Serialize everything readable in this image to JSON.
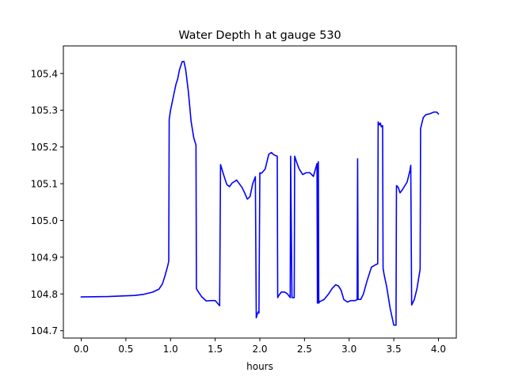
{
  "chart_data": {
    "type": "line",
    "title": "Water Depth h at gauge 530",
    "xlabel": "hours",
    "ylabel": "",
    "xlim": [
      -0.2,
      4.2
    ],
    "ylim": [
      104.68,
      105.475
    ],
    "grid": false,
    "x_ticks": [
      0.0,
      0.5,
      1.0,
      1.5,
      2.0,
      2.5,
      3.0,
      3.5,
      4.0
    ],
    "x_tick_labels": [
      "0.0",
      "0.5",
      "1.0",
      "1.5",
      "2.0",
      "2.5",
      "3.0",
      "3.5",
      "4.0"
    ],
    "y_ticks": [
      104.7,
      104.8,
      104.9,
      105.0,
      105.1,
      105.2,
      105.3,
      105.4
    ],
    "y_tick_labels": [
      "104.7",
      "104.8",
      "104.9",
      "105.0",
      "105.1",
      "105.2",
      "105.3",
      "105.4"
    ],
    "series": [
      {
        "color": "#0000ff",
        "x": [
          0.0,
          0.3,
          0.6,
          0.7,
          0.8,
          0.87,
          0.91,
          0.94,
          0.97,
          0.98,
          0.985,
          1.0,
          1.03,
          1.06,
          1.08,
          1.1,
          1.13,
          1.15,
          1.17,
          1.2,
          1.23,
          1.26,
          1.285,
          1.29,
          1.3,
          1.35,
          1.4,
          1.45,
          1.5,
          1.55,
          1.56,
          1.575,
          1.6,
          1.63,
          1.66,
          1.69,
          1.71,
          1.74,
          1.77,
          1.8,
          1.83,
          1.86,
          1.89,
          1.92,
          1.95,
          1.96,
          1.975,
          1.985,
          1.99,
          2.0,
          2.01,
          2.025,
          2.06,
          2.1,
          2.13,
          2.15,
          2.18,
          2.195,
          2.2,
          2.21,
          2.24,
          2.28,
          2.31,
          2.34,
          2.345,
          2.36,
          2.385,
          2.39,
          2.41,
          2.44,
          2.48,
          2.52,
          2.56,
          2.6,
          2.64,
          2.645,
          2.655,
          2.66,
          2.67,
          2.68,
          2.72,
          2.77,
          2.81,
          2.85,
          2.88,
          2.91,
          2.94,
          2.98,
          3.0,
          3.02,
          3.07,
          3.09,
          3.095,
          3.1,
          3.13,
          3.16,
          3.2,
          3.25,
          3.3,
          3.32,
          3.325,
          3.34,
          3.35,
          3.36,
          3.375,
          3.38,
          3.39,
          3.42,
          3.46,
          3.5,
          3.525,
          3.53,
          3.55,
          3.57,
          3.6,
          3.65,
          3.68,
          3.69,
          3.7,
          3.73,
          3.76,
          3.79,
          3.795,
          3.8,
          3.83,
          3.86,
          3.9,
          3.95,
          3.98,
          4.0
        ],
        "y": [
          104.792,
          104.793,
          104.796,
          104.799,
          104.805,
          104.813,
          104.828,
          104.851,
          104.878,
          104.889,
          105.275,
          105.3,
          105.335,
          105.37,
          105.385,
          105.41,
          105.432,
          105.433,
          105.41,
          105.35,
          105.27,
          105.225,
          105.205,
          104.815,
          104.81,
          104.792,
          104.781,
          104.782,
          104.782,
          104.768,
          105.152,
          105.14,
          105.12,
          105.098,
          105.092,
          105.102,
          105.105,
          105.11,
          105.1,
          105.09,
          105.075,
          105.058,
          105.065,
          105.1,
          105.119,
          104.735,
          104.748,
          104.752,
          104.748,
          105.13,
          105.128,
          105.13,
          105.14,
          105.18,
          105.185,
          105.18,
          105.176,
          105.175,
          104.79,
          104.795,
          104.805,
          104.805,
          104.8,
          104.79,
          105.175,
          104.79,
          104.79,
          105.175,
          105.16,
          105.14,
          105.125,
          105.13,
          105.13,
          105.12,
          105.155,
          104.775,
          105.16,
          104.775,
          104.78,
          104.78,
          104.785,
          104.8,
          104.815,
          104.825,
          104.822,
          104.81,
          104.785,
          104.778,
          104.78,
          104.782,
          104.782,
          104.785,
          105.168,
          104.785,
          104.785,
          104.8,
          104.835,
          104.873,
          104.88,
          104.882,
          105.268,
          105.26,
          105.265,
          105.255,
          105.258,
          104.87,
          104.855,
          104.82,
          104.76,
          104.715,
          104.715,
          105.095,
          105.09,
          105.075,
          105.085,
          105.105,
          105.135,
          105.15,
          104.77,
          104.785,
          104.815,
          104.86,
          104.868,
          105.25,
          105.28,
          105.288,
          105.29,
          105.295,
          105.295,
          105.29
        ]
      }
    ]
  }
}
